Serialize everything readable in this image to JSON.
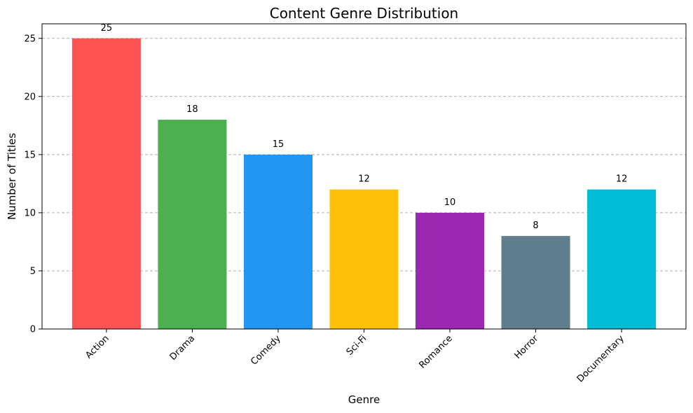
{
  "chart_data": {
    "type": "bar",
    "title": "Content Genre Distribution",
    "xlabel": "Genre",
    "ylabel": "Number of Titles",
    "categories": [
      "Action",
      "Drama",
      "Comedy",
      "Sci-Fi",
      "Romance",
      "Horror",
      "Documentary"
    ],
    "values": [
      25,
      18,
      15,
      12,
      10,
      8,
      12
    ],
    "colors": [
      "#ff5252",
      "#4caf50",
      "#2196f3",
      "#ffc107",
      "#9c27b0",
      "#607d8b",
      "#00bcd4"
    ],
    "yticks": [
      0,
      5,
      10,
      15,
      20,
      25
    ],
    "ylim": [
      0,
      26.25
    ],
    "grid": "y-dashed",
    "xtick_rotation": 45
  }
}
